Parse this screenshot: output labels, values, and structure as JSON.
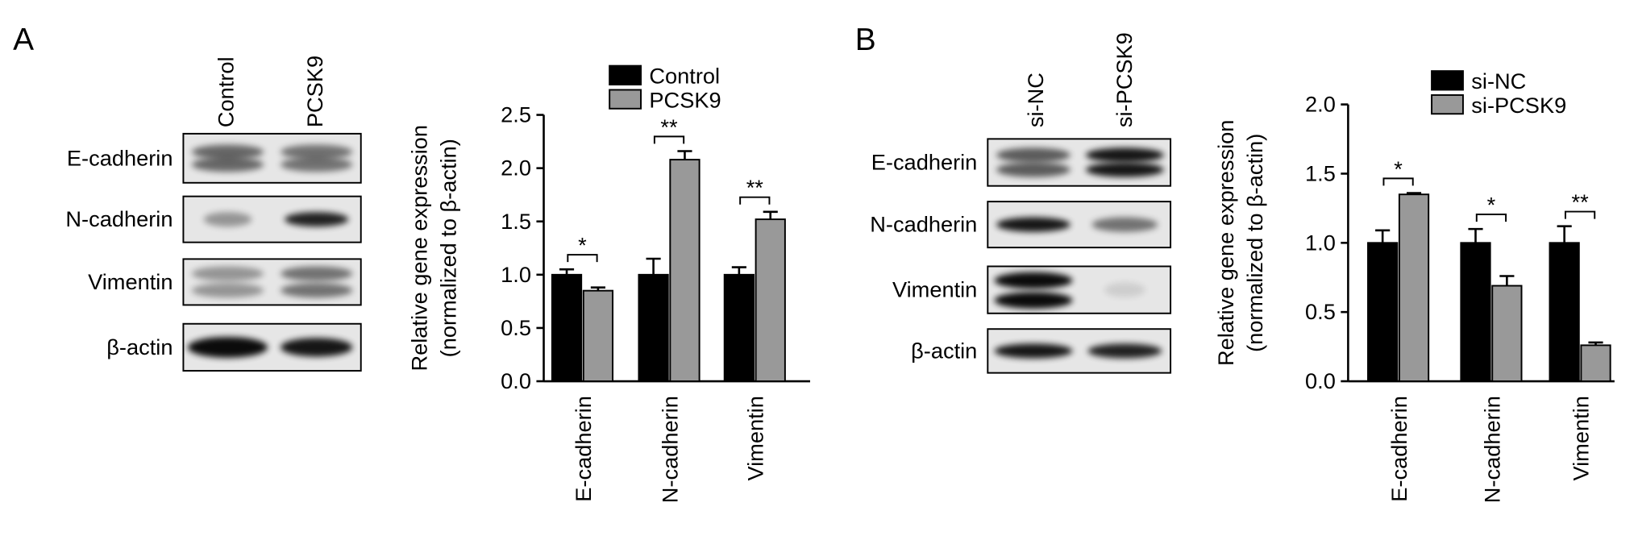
{
  "blots": [
    {
      "panel_label": "A",
      "lanes": [
        "Control",
        "PCSK9"
      ],
      "rows": [
        "E-cadherin",
        "N-cadherin",
        "Vimentin",
        "β-actin"
      ]
    },
    {
      "panel_label": "B",
      "lanes": [
        "si-NC",
        "si-PCSK9"
      ],
      "rows": [
        "E-cadherin",
        "N-cadherin",
        "Vimentin",
        "β-actin"
      ]
    }
  ],
  "chart_data": [
    {
      "type": "bar",
      "ylabel": [
        "Relative gene expression",
        "(normalized to β-actin)"
      ],
      "categories": [
        "E-cadherin",
        "N-cadherin",
        "Vimentin"
      ],
      "series": [
        {
          "name": "Control",
          "color": "#000000",
          "values": [
            1.0,
            1.0,
            1.0
          ],
          "errors": [
            0.05,
            0.15,
            0.07
          ]
        },
        {
          "name": "PCSK9",
          "color": "#999999",
          "values": [
            0.85,
            2.08,
            1.52
          ],
          "errors": [
            0.03,
            0.08,
            0.07
          ]
        }
      ],
      "annotations": [
        "*",
        "**",
        "**"
      ],
      "ylim": [
        0,
        2.5
      ],
      "yticks": [
        {
          "value": 0,
          "label": "0.0"
        },
        0.5,
        {
          "value": 1,
          "label": "1.0"
        },
        1.5,
        {
          "value": 2,
          "label": "2.0"
        },
        2.5
      ]
    },
    {
      "type": "bar",
      "ylabel": [
        "Relative gene expression",
        "(normalized to β-actin)"
      ],
      "categories": [
        "E-cadherin",
        "N-cadherin",
        "Vimentin"
      ],
      "series": [
        {
          "name": "si-NC",
          "color": "#000000",
          "values": [
            1.0,
            1.0,
            1.0
          ],
          "errors": [
            0.09,
            0.1,
            0.12
          ]
        },
        {
          "name": "si-PCSK9",
          "color": "#999999",
          "values": [
            1.35,
            0.69,
            0.26
          ],
          "errors": [
            0.01,
            0.07,
            0.02
          ]
        }
      ],
      "annotations": [
        "*",
        "*",
        "**"
      ],
      "ylim": [
        0,
        2.0
      ],
      "yticks": [
        {
          "value": 0,
          "label": "0.0"
        },
        0.5,
        {
          "value": 1,
          "label": "1.0"
        },
        1.5,
        {
          "value": 2,
          "label": "2.0"
        }
      ]
    }
  ]
}
